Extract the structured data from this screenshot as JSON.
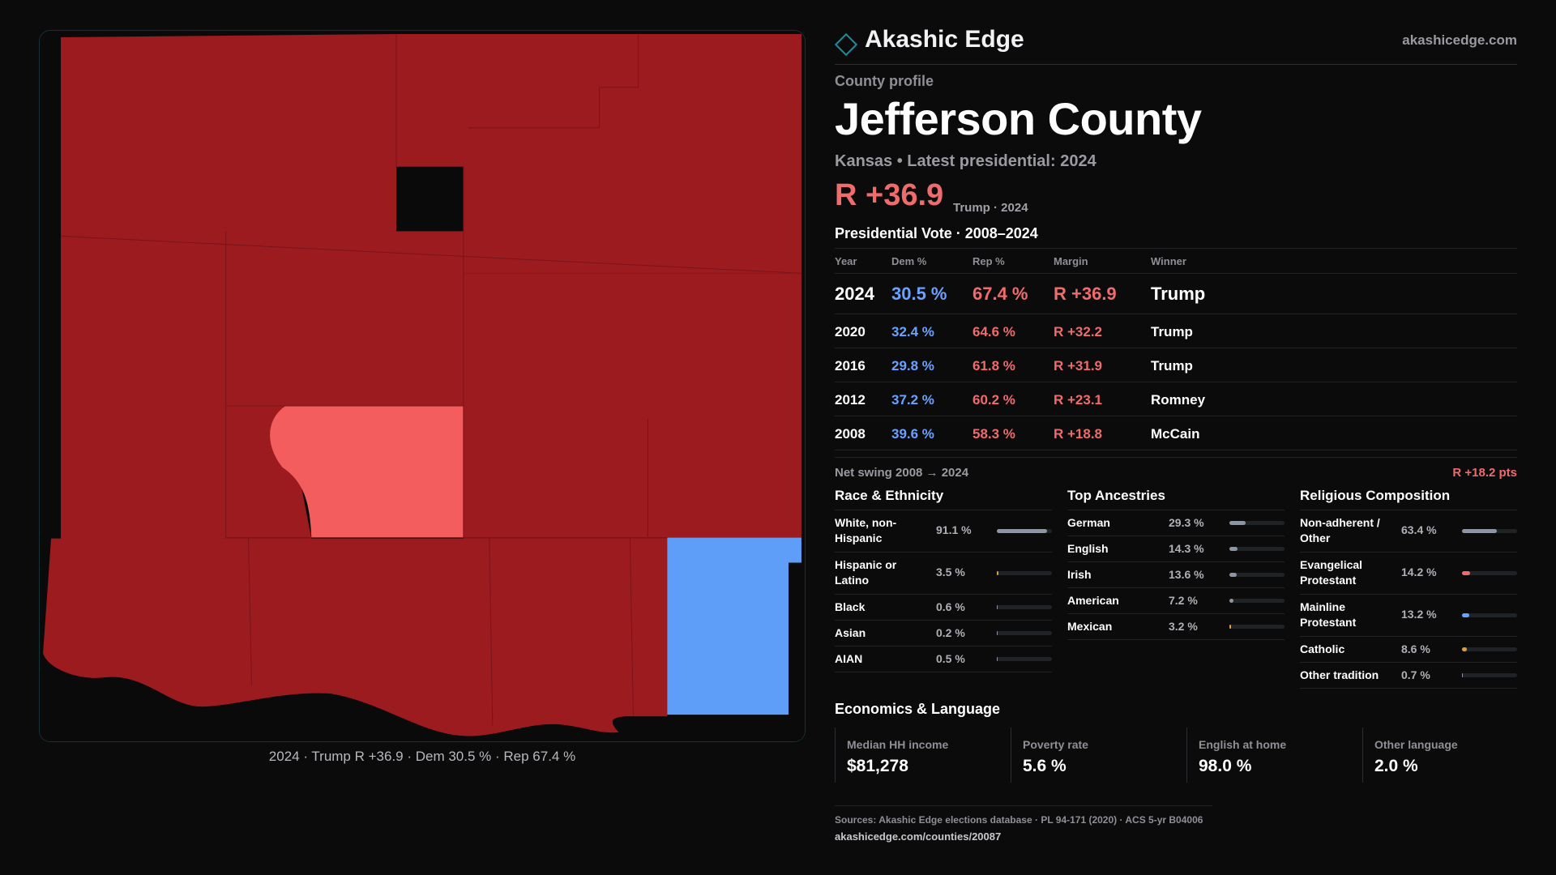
{
  "brand": {
    "name": "Akashic Edge",
    "site": "akashicedge.com",
    "accent": "#1e8c9c"
  },
  "profile": {
    "eyebrow": "County profile",
    "county": "Jefferson County",
    "subline": "Kansas • Latest presidential: 2024",
    "margin": "R +36.9",
    "margin_note": "Trump · 2024"
  },
  "map": {
    "caption": "2024 · Trump R +36.9 · Dem 30.5 % · Rep 67.4 %",
    "colors": {
      "strong_rep": "#9b1b1f",
      "lean_rep": "#f35d5e",
      "dem": "#5f9ef8"
    }
  },
  "vote": {
    "title": "Presidential Vote · 2008–2024",
    "headers": {
      "year": "Year",
      "dem": "Dem %",
      "rep": "Rep %",
      "margin": "Margin",
      "winner": "Winner"
    },
    "rows": [
      {
        "year": "2024",
        "dem": "30.5 %",
        "rep": "67.4 %",
        "margin": "R +36.9",
        "winner": "Trump"
      },
      {
        "year": "2020",
        "dem": "32.4 %",
        "rep": "64.6 %",
        "margin": "R +32.2",
        "winner": "Trump"
      },
      {
        "year": "2016",
        "dem": "29.8 %",
        "rep": "61.8 %",
        "margin": "R +31.9",
        "winner": "Trump"
      },
      {
        "year": "2012",
        "dem": "37.2 %",
        "rep": "60.2 %",
        "margin": "R +23.1",
        "winner": "Romney"
      },
      {
        "year": "2008",
        "dem": "39.6 %",
        "rep": "58.3 %",
        "margin": "R +18.8",
        "winner": "McCain"
      }
    ],
    "swing_label": "Net swing 2008 → 2024",
    "swing_value": "R +18.2 pts"
  },
  "race": {
    "title": "Race & Ethnicity",
    "items": [
      {
        "label": "White, non-Hispanic",
        "pct": "91.1 %",
        "value": 91.1,
        "color": "#8a96a8"
      },
      {
        "label": "Hispanic or Latino",
        "pct": "3.5 %",
        "value": 3.5,
        "color": "#e0a030"
      },
      {
        "label": "Black",
        "pct": "0.6 %",
        "value": 0.6,
        "color": "#8a96a8"
      },
      {
        "label": "Asian",
        "pct": "0.2 %",
        "value": 0.2,
        "color": "#8a96a8"
      },
      {
        "label": "AIAN",
        "pct": "0.5 %",
        "value": 0.5,
        "color": "#8a96a8"
      }
    ]
  },
  "ancestry": {
    "title": "Top Ancestries",
    "items": [
      {
        "label": "German",
        "pct": "29.3 %",
        "value": 29.3,
        "color": "#8a96a8"
      },
      {
        "label": "English",
        "pct": "14.3 %",
        "value": 14.3,
        "color": "#8a96a8"
      },
      {
        "label": "Irish",
        "pct": "13.6 %",
        "value": 13.6,
        "color": "#8a96a8"
      },
      {
        "label": "American",
        "pct": "7.2 %",
        "value": 7.2,
        "color": "#8a96a8"
      },
      {
        "label": "Mexican",
        "pct": "3.2 %",
        "value": 3.2,
        "color": "#e0a030"
      }
    ]
  },
  "religion": {
    "title": "Religious Composition",
    "items": [
      {
        "label": "Non-adherent / Other",
        "pct": "63.4 %",
        "value": 63.4,
        "color": "#8a96a8"
      },
      {
        "label": "Evangelical Protestant",
        "pct": "14.2 %",
        "value": 14.2,
        "color": "#f06b6b"
      },
      {
        "label": "Mainline Protestant",
        "pct": "13.2 %",
        "value": 13.2,
        "color": "#6aa3ff"
      },
      {
        "label": "Catholic",
        "pct": "8.6 %",
        "value": 8.6,
        "color": "#e0a030"
      },
      {
        "label": "Other tradition",
        "pct": "0.7 %",
        "value": 0.7,
        "color": "#8a96a8"
      }
    ]
  },
  "economics": {
    "title": "Economics & Language",
    "items": [
      {
        "label": "Median HH income",
        "value": "$81,278"
      },
      {
        "label": "Poverty rate",
        "value": "5.6 %"
      },
      {
        "label": "English at home",
        "value": "98.0 %"
      },
      {
        "label": "Other language",
        "value": "2.0 %"
      }
    ]
  },
  "sources": {
    "line": "Sources: Akashic Edge elections database · PL 94-171 (2020) · ACS 5-yr B04006",
    "url": "akashicedge.com/counties/20087"
  }
}
